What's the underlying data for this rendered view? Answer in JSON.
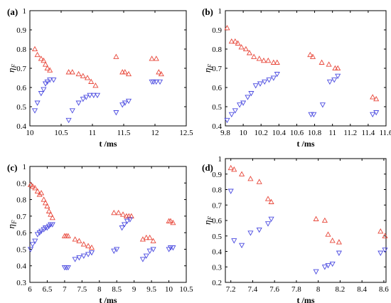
{
  "chart_data": [
    {
      "type": "scatter",
      "panel_label": "(a)",
      "xlabel": "t /ms",
      "ylabel": "η",
      "ylabel_sub": "F",
      "xlim": [
        10,
        12.5
      ],
      "ylim": [
        0.4,
        1.0
      ],
      "xticks": [
        10,
        10.5,
        11,
        11.5,
        12,
        12.5
      ],
      "xtick_labels": [
        "10",
        "10.5",
        "11",
        "11.5",
        "12",
        "12.5"
      ],
      "yticks": [
        0.4,
        0.5,
        0.6,
        0.7,
        0.8,
        0.9,
        1
      ],
      "ytick_labels": [
        "0.4",
        "0.5",
        "0.6",
        "0.7",
        "0.8",
        "0.9",
        "1"
      ],
      "series": [
        {
          "marker": "triangle-up",
          "color": "#e8473a",
          "points": [
            [
              10.08,
              0.8
            ],
            [
              10.12,
              0.77
            ],
            [
              10.18,
              0.75
            ],
            [
              10.22,
              0.74
            ],
            [
              10.25,
              0.72
            ],
            [
              10.28,
              0.7
            ],
            [
              10.32,
              0.69
            ],
            [
              10.62,
              0.68
            ],
            [
              10.68,
              0.68
            ],
            [
              10.78,
              0.67
            ],
            [
              10.85,
              0.66
            ],
            [
              10.92,
              0.65
            ],
            [
              10.98,
              0.63
            ],
            [
              11.05,
              0.61
            ],
            [
              11.38,
              0.76
            ],
            [
              11.48,
              0.68
            ],
            [
              11.52,
              0.68
            ],
            [
              11.58,
              0.67
            ],
            [
              11.95,
              0.75
            ],
            [
              12.02,
              0.75
            ],
            [
              12.06,
              0.68
            ],
            [
              12.1,
              0.67
            ]
          ]
        },
        {
          "marker": "triangle-down",
          "color": "#4a4ae0",
          "points": [
            [
              10.08,
              0.48
            ],
            [
              10.12,
              0.52
            ],
            [
              10.18,
              0.57
            ],
            [
              10.22,
              0.59
            ],
            [
              10.25,
              0.62
            ],
            [
              10.28,
              0.63
            ],
            [
              10.32,
              0.64
            ],
            [
              10.38,
              0.64
            ],
            [
              10.62,
              0.43
            ],
            [
              10.68,
              0.48
            ],
            [
              10.78,
              0.52
            ],
            [
              10.85,
              0.54
            ],
            [
              10.9,
              0.55
            ],
            [
              10.96,
              0.56
            ],
            [
              11.02,
              0.56
            ],
            [
              11.08,
              0.56
            ],
            [
              11.38,
              0.47
            ],
            [
              11.48,
              0.51
            ],
            [
              11.52,
              0.52
            ],
            [
              11.58,
              0.53
            ],
            [
              11.95,
              0.63
            ],
            [
              11.98,
              0.63
            ],
            [
              12.02,
              0.63
            ],
            [
              12.08,
              0.63
            ]
          ]
        }
      ]
    },
    {
      "type": "scatter",
      "panel_label": "(b)",
      "xlabel": "t /ms",
      "ylabel": "η",
      "ylabel_sub": "F",
      "xlim": [
        9.8,
        11.6
      ],
      "ylim": [
        0.4,
        1.0
      ],
      "xticks": [
        9.8,
        10,
        10.2,
        10.4,
        10.6,
        10.8,
        11,
        11.2,
        11.4,
        11.6
      ],
      "xtick_labels": [
        "9.8",
        "10",
        "10.2",
        "10.4",
        "10.6",
        "10.8",
        "11",
        "11.2",
        "11.4",
        "11.6"
      ],
      "yticks": [
        0.4,
        0.5,
        0.6,
        0.7,
        0.8,
        0.9,
        1
      ],
      "ytick_labels": [
        "0.4",
        "0.5",
        "0.6",
        "0.7",
        "0.8",
        "0.9",
        "1"
      ],
      "series": [
        {
          "marker": "triangle-up",
          "color": "#e8473a",
          "points": [
            [
              9.82,
              0.91
            ],
            [
              9.87,
              0.84
            ],
            [
              9.91,
              0.84
            ],
            [
              9.94,
              0.83
            ],
            [
              9.98,
              0.81
            ],
            [
              10.03,
              0.8
            ],
            [
              10.07,
              0.78
            ],
            [
              10.12,
              0.76
            ],
            [
              10.18,
              0.75
            ],
            [
              10.23,
              0.74
            ],
            [
              10.28,
              0.74
            ],
            [
              10.34,
              0.73
            ],
            [
              10.38,
              0.73
            ],
            [
              10.75,
              0.77
            ],
            [
              10.78,
              0.76
            ],
            [
              10.88,
              0.73
            ],
            [
              10.96,
              0.72
            ],
            [
              11.03,
              0.7
            ],
            [
              11.06,
              0.7
            ],
            [
              11.45,
              0.55
            ],
            [
              11.49,
              0.54
            ]
          ]
        },
        {
          "marker": "triangle-down",
          "color": "#4a4ae0",
          "points": [
            [
              9.82,
              0.43
            ],
            [
              9.87,
              0.46
            ],
            [
              9.91,
              0.48
            ],
            [
              9.96,
              0.51
            ],
            [
              10.0,
              0.52
            ],
            [
              10.05,
              0.55
            ],
            [
              10.09,
              0.57
            ],
            [
              10.14,
              0.61
            ],
            [
              10.19,
              0.62
            ],
            [
              10.24,
              0.63
            ],
            [
              10.29,
              0.64
            ],
            [
              10.34,
              0.65
            ],
            [
              10.38,
              0.67
            ],
            [
              10.76,
              0.46
            ],
            [
              10.79,
              0.46
            ],
            [
              10.89,
              0.51
            ],
            [
              10.97,
              0.63
            ],
            [
              11.02,
              0.64
            ],
            [
              11.06,
              0.66
            ],
            [
              11.45,
              0.46
            ],
            [
              11.49,
              0.47
            ]
          ]
        }
      ]
    },
    {
      "type": "scatter",
      "panel_label": "(c)",
      "xlabel": "t /ms",
      "ylabel": "η",
      "ylabel_sub": "F",
      "xlim": [
        6,
        10.5
      ],
      "ylim": [
        0.3,
        1.0
      ],
      "xticks": [
        6,
        6.5,
        7,
        7.5,
        8,
        8.5,
        9,
        9.5,
        10,
        10.5
      ],
      "xtick_labels": [
        "6",
        "6.5",
        "7",
        "7.5",
        "8",
        "8.5",
        "9",
        "9.5",
        "10",
        "10.5"
      ],
      "yticks": [
        0.3,
        0.4,
        0.5,
        0.6,
        0.7,
        0.8,
        0.9,
        1
      ],
      "ytick_labels": [
        "0.3",
        "0.4",
        "0.5",
        "0.6",
        "0.7",
        "0.8",
        "0.9",
        "1"
      ],
      "series": [
        {
          "marker": "triangle-up",
          "color": "#e8473a",
          "points": [
            [
              6.02,
              0.89
            ],
            [
              6.08,
              0.88
            ],
            [
              6.15,
              0.87
            ],
            [
              6.22,
              0.85
            ],
            [
              6.28,
              0.83
            ],
            [
              6.33,
              0.84
            ],
            [
              6.4,
              0.8
            ],
            [
              6.45,
              0.78
            ],
            [
              6.5,
              0.76
            ],
            [
              6.55,
              0.73
            ],
            [
              6.6,
              0.71
            ],
            [
              6.65,
              0.69
            ],
            [
              7.0,
              0.58
            ],
            [
              7.05,
              0.58
            ],
            [
              7.1,
              0.58
            ],
            [
              7.3,
              0.56
            ],
            [
              7.42,
              0.55
            ],
            [
              7.55,
              0.53
            ],
            [
              7.68,
              0.52
            ],
            [
              7.78,
              0.51
            ],
            [
              8.42,
              0.72
            ],
            [
              8.55,
              0.72
            ],
            [
              8.68,
              0.71
            ],
            [
              8.78,
              0.7
            ],
            [
              8.85,
              0.7
            ],
            [
              8.92,
              0.7
            ],
            [
              9.25,
              0.56
            ],
            [
              9.35,
              0.57
            ],
            [
              9.45,
              0.57
            ],
            [
              9.55,
              0.55
            ],
            [
              10.0,
              0.67
            ],
            [
              10.05,
              0.67
            ],
            [
              10.12,
              0.66
            ]
          ]
        },
        {
          "marker": "triangle-down",
          "color": "#4a4ae0",
          "points": [
            [
              6.02,
              0.5
            ],
            [
              6.08,
              0.53
            ],
            [
              6.15,
              0.55
            ],
            [
              6.22,
              0.59
            ],
            [
              6.28,
              0.6
            ],
            [
              6.33,
              0.61
            ],
            [
              6.4,
              0.62
            ],
            [
              6.45,
              0.63
            ],
            [
              6.5,
              0.63
            ],
            [
              6.55,
              0.64
            ],
            [
              6.6,
              0.65
            ],
            [
              6.65,
              0.65
            ],
            [
              7.0,
              0.39
            ],
            [
              7.05,
              0.39
            ],
            [
              7.1,
              0.39
            ],
            [
              7.3,
              0.44
            ],
            [
              7.42,
              0.45
            ],
            [
              7.55,
              0.46
            ],
            [
              7.68,
              0.47
            ],
            [
              7.78,
              0.48
            ],
            [
              8.42,
              0.49
            ],
            [
              8.5,
              0.5
            ],
            [
              8.65,
              0.63
            ],
            [
              8.72,
              0.65
            ],
            [
              8.8,
              0.67
            ],
            [
              8.88,
              0.68
            ],
            [
              9.25,
              0.44
            ],
            [
              9.35,
              0.46
            ],
            [
              9.45,
              0.49
            ],
            [
              9.55,
              0.5
            ],
            [
              10.0,
              0.5
            ],
            [
              10.05,
              0.51
            ],
            [
              10.12,
              0.51
            ]
          ]
        }
      ]
    },
    {
      "type": "scatter",
      "panel_label": "(d)",
      "xlabel": "t /ms",
      "ylabel": "η",
      "ylabel_sub": "F",
      "xlim": [
        7.15,
        8.62
      ],
      "ylim": [
        0.2,
        1.0
      ],
      "xticks": [
        7.2,
        7.4,
        7.6,
        7.8,
        8,
        8.2,
        8.4,
        8.6
      ],
      "xtick_labels": [
        "7.2",
        "7.4",
        "7.6",
        "7.8",
        "8",
        "8.2",
        "8.4",
        "8.6"
      ],
      "yticks": [
        0.2,
        0.3,
        0.4,
        0.5,
        0.6,
        0.7,
        0.8,
        0.9,
        1
      ],
      "ytick_labels": [
        "0.2",
        "0.3",
        "0.4",
        "0.5",
        "0.6",
        "0.7",
        "0.8",
        "0.9",
        "1"
      ],
      "series": [
        {
          "marker": "triangle-up",
          "color": "#e8473a",
          "points": [
            [
              7.2,
              0.94
            ],
            [
              7.23,
              0.93
            ],
            [
              7.3,
              0.9
            ],
            [
              7.38,
              0.87
            ],
            [
              7.46,
              0.85
            ],
            [
              7.54,
              0.74
            ],
            [
              7.57,
              0.72
            ],
            [
              7.98,
              0.61
            ],
            [
              8.06,
              0.6
            ],
            [
              8.09,
              0.51
            ],
            [
              8.13,
              0.47
            ],
            [
              8.19,
              0.46
            ],
            [
              8.57,
              0.53
            ],
            [
              8.61,
              0.5
            ]
          ]
        },
        {
          "marker": "triangle-down",
          "color": "#4a4ae0",
          "points": [
            [
              7.2,
              0.79
            ],
            [
              7.23,
              0.47
            ],
            [
              7.3,
              0.44
            ],
            [
              7.38,
              0.52
            ],
            [
              7.46,
              0.54
            ],
            [
              7.54,
              0.58
            ],
            [
              7.57,
              0.61
            ],
            [
              7.98,
              0.27
            ],
            [
              8.06,
              0.3
            ],
            [
              8.09,
              0.31
            ],
            [
              8.13,
              0.32
            ],
            [
              8.19,
              0.39
            ],
            [
              8.57,
              0.39
            ],
            [
              8.61,
              0.41
            ]
          ]
        }
      ]
    }
  ]
}
